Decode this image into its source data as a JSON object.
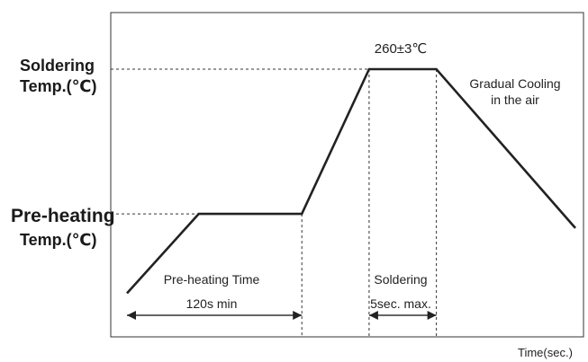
{
  "chart_data": {
    "type": "line",
    "title": "",
    "xlabel": "Time(sec.)",
    "ylabel": "",
    "y_levels": [
      {
        "id": "pre",
        "label_line1": "Pre-heating",
        "label_line2": "Temp.(℃)",
        "value": 0.38
      },
      {
        "id": "solder",
        "label_line1": "Soldering",
        "label_line2": "Temp.(℃)",
        "value": 0.89
      }
    ],
    "series": [
      {
        "x": [
          0.0,
          0.16,
          0.39,
          0.54,
          0.69,
          1.0
        ],
        "y": [
          0.1,
          0.38,
          0.38,
          0.89,
          0.89,
          0.33
        ]
      }
    ],
    "annotations": {
      "peak": "260±3℃",
      "cooling_line1": "Gradual Cooling",
      "cooling_line2": "in the air",
      "preheat_time_line1": "Pre-heating Time",
      "preheat_time_line2": "120s min",
      "solder_time_line1": "Soldering",
      "solder_time_line2": "5sec. max."
    },
    "grid": false,
    "legend": "none"
  }
}
